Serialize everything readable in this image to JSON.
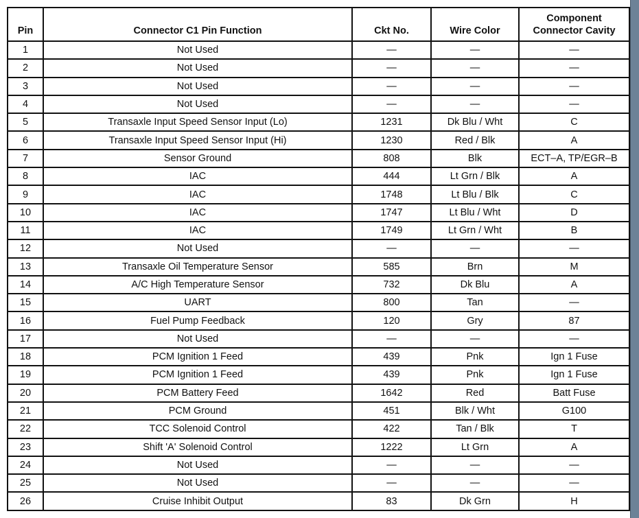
{
  "table": {
    "headers": [
      "Pin",
      "Connector C1 Pin Function",
      "Ckt No.",
      "Wire Color",
      "Component Connector Cavity"
    ],
    "rows": [
      [
        "1",
        "Not Used",
        "—",
        "—",
        "—"
      ],
      [
        "2",
        "Not Used",
        "—",
        "—",
        "—"
      ],
      [
        "3",
        "Not Used",
        "—",
        "—",
        "—"
      ],
      [
        "4",
        "Not Used",
        "—",
        "—",
        "—"
      ],
      [
        "5",
        "Transaxle Input Speed Sensor Input (Lo)",
        "1231",
        "Dk Blu / Wht",
        "C"
      ],
      [
        "6",
        "Transaxle Input Speed Sensor Input (Hi)",
        "1230",
        "Red / Blk",
        "A"
      ],
      [
        "7",
        "Sensor Ground",
        "808",
        "Blk",
        "ECT–A, TP/EGR–B"
      ],
      [
        "8",
        "IAC",
        "444",
        "Lt Grn / Blk",
        "A"
      ],
      [
        "9",
        "IAC",
        "1748",
        "Lt Blu / Blk",
        "C"
      ],
      [
        "10",
        "IAC",
        "1747",
        "Lt Blu / Wht",
        "D"
      ],
      [
        "11",
        "IAC",
        "1749",
        "Lt Grn / Wht",
        "B"
      ],
      [
        "12",
        "Not Used",
        "—",
        "—",
        "—"
      ],
      [
        "13",
        "Transaxle Oil Temperature Sensor",
        "585",
        "Brn",
        "M"
      ],
      [
        "14",
        "A/C High Temperature Sensor",
        "732",
        "Dk Blu",
        "A"
      ],
      [
        "15",
        "UART",
        "800",
        "Tan",
        "—"
      ],
      [
        "16",
        "Fuel Pump Feedback",
        "120",
        "Gry",
        "87"
      ],
      [
        "17",
        "Not Used",
        "—",
        "—",
        "—"
      ],
      [
        "18",
        "PCM Ignition 1 Feed",
        "439",
        "Pnk",
        "Ign 1 Fuse"
      ],
      [
        "19",
        "PCM Ignition 1 Feed",
        "439",
        "Pnk",
        "Ign 1 Fuse"
      ],
      [
        "20",
        "PCM Battery Feed",
        "1642",
        "Red",
        "Batt Fuse"
      ],
      [
        "21",
        "PCM Ground",
        "451",
        "Blk / Wht",
        "G100"
      ],
      [
        "22",
        "TCC Solenoid Control",
        "422",
        "Tan / Blk",
        "T"
      ],
      [
        "23",
        "Shift 'A' Solenoid Control",
        "1222",
        "Lt Grn",
        "A"
      ],
      [
        "24",
        "Not Used",
        "—",
        "—",
        "—"
      ],
      [
        "25",
        "Not Used",
        "—",
        "—",
        "—"
      ],
      [
        "26",
        "Cruise Inhibit Output",
        "83",
        "Dk Grn",
        "H"
      ]
    ]
  }
}
